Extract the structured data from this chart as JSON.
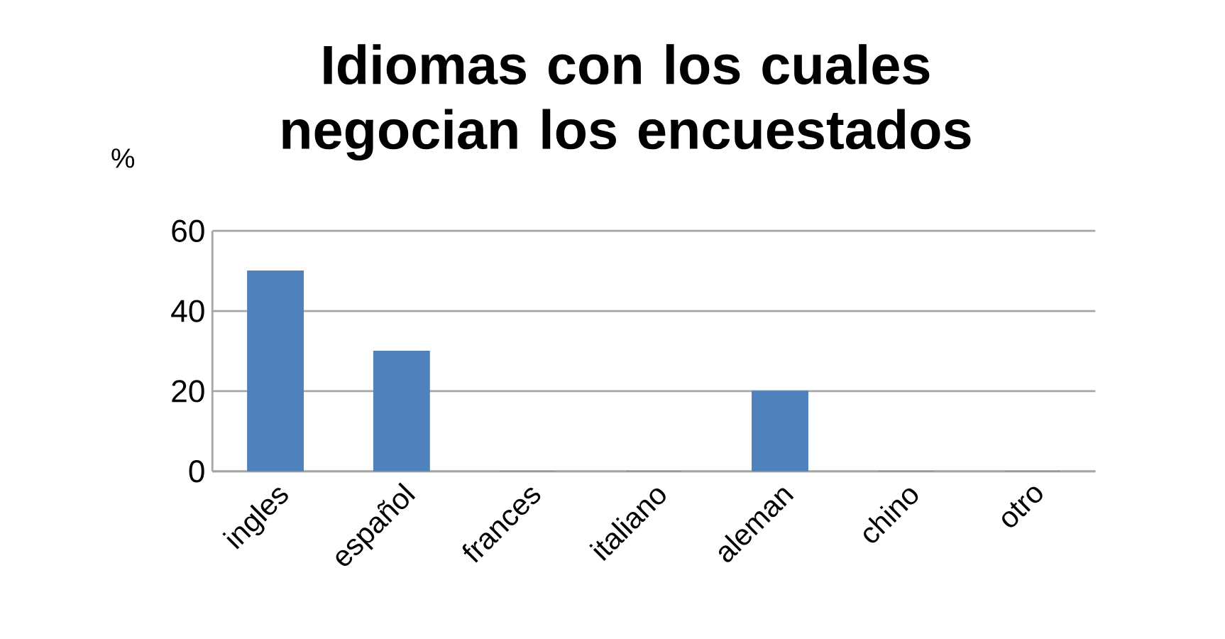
{
  "chart_data": {
    "type": "bar",
    "title": "Idiomas con los cuales negocian los encuestados",
    "ylabel": "%",
    "categories": [
      "ingles",
      "español",
      "frances",
      "italiano",
      "aleman",
      "chino",
      "otro"
    ],
    "values": [
      50,
      30,
      0,
      0,
      20,
      0,
      0
    ],
    "color": "#4f81bd",
    "ylim": [
      0,
      60
    ],
    "yticks": [
      0,
      20,
      40,
      60
    ],
    "grid": "y"
  }
}
